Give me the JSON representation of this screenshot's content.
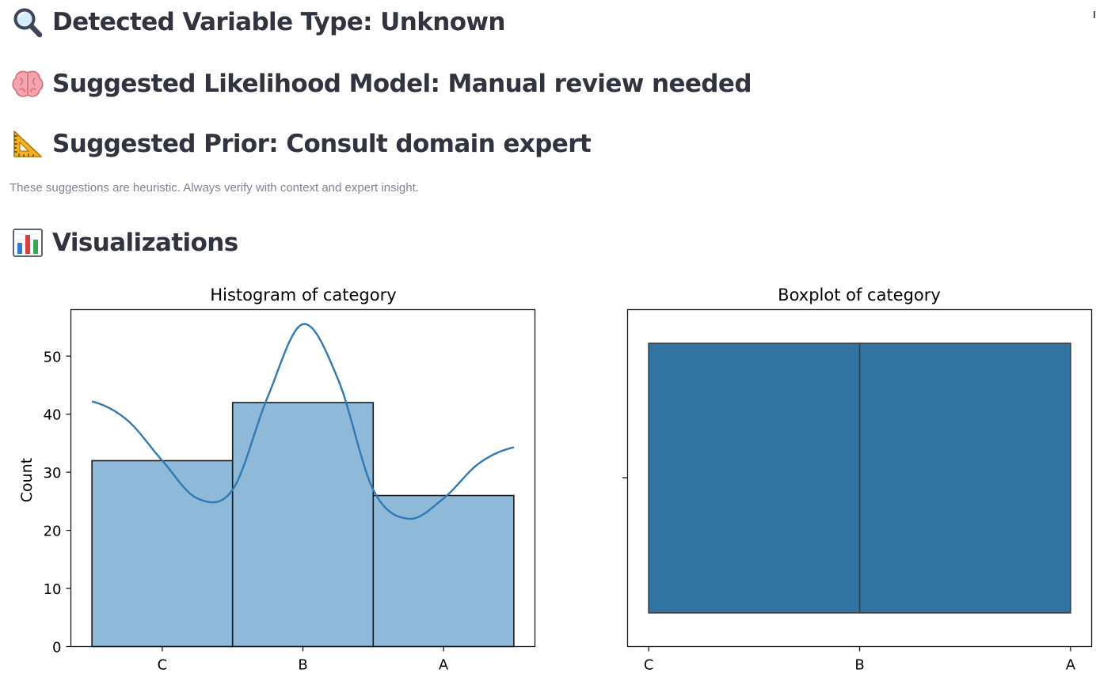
{
  "headings": {
    "variable_type": "Detected Variable Type: Unknown",
    "likelihood": "Suggested Likelihood Model: Manual review needed",
    "prior": "Suggested Prior: Consult domain expert",
    "visualizations": "Visualizations"
  },
  "icons": {
    "variable_type": "magnifying-glass-icon",
    "likelihood": "brain-icon",
    "prior": "triangular-ruler-icon",
    "visualizations": "bar-chart-icon"
  },
  "caption": "These suggestions are heuristic. Always verify with context and expert insight.",
  "chart_data": [
    {
      "type": "bar",
      "title": "Histogram of category",
      "xlabel": "",
      "ylabel": "Count",
      "categories": [
        "C",
        "B",
        "A"
      ],
      "values": [
        32,
        42,
        26
      ],
      "ylim": [
        0,
        58
      ],
      "yticks": [
        0,
        10,
        20,
        30,
        40,
        50
      ],
      "kde": {
        "x": [
          -0.5,
          -0.25,
          0,
          0.25,
          0.5,
          0.75,
          1,
          1.25,
          1.5,
          1.75,
          2,
          2.25,
          2.5
        ],
        "y": [
          42.2,
          39,
          32,
          25.5,
          27,
          43,
          55.5,
          46,
          27,
          22,
          25.5,
          31.5,
          34.3
        ]
      },
      "grid": false,
      "colors": {
        "bar": "#8fb9d9",
        "edge": "#1a1a1a",
        "kde": "#2f7ab5"
      }
    },
    {
      "type": "boxplot",
      "title": "Boxplot of category",
      "xlabel": "",
      "ylabel": "",
      "categories": [
        "C",
        "B",
        "A"
      ],
      "box": {
        "q1": "C",
        "median": "B",
        "q3": "A"
      },
      "grid": false,
      "colors": {
        "box": "#3274a1",
        "edge": "#3c3c3c"
      }
    }
  ]
}
